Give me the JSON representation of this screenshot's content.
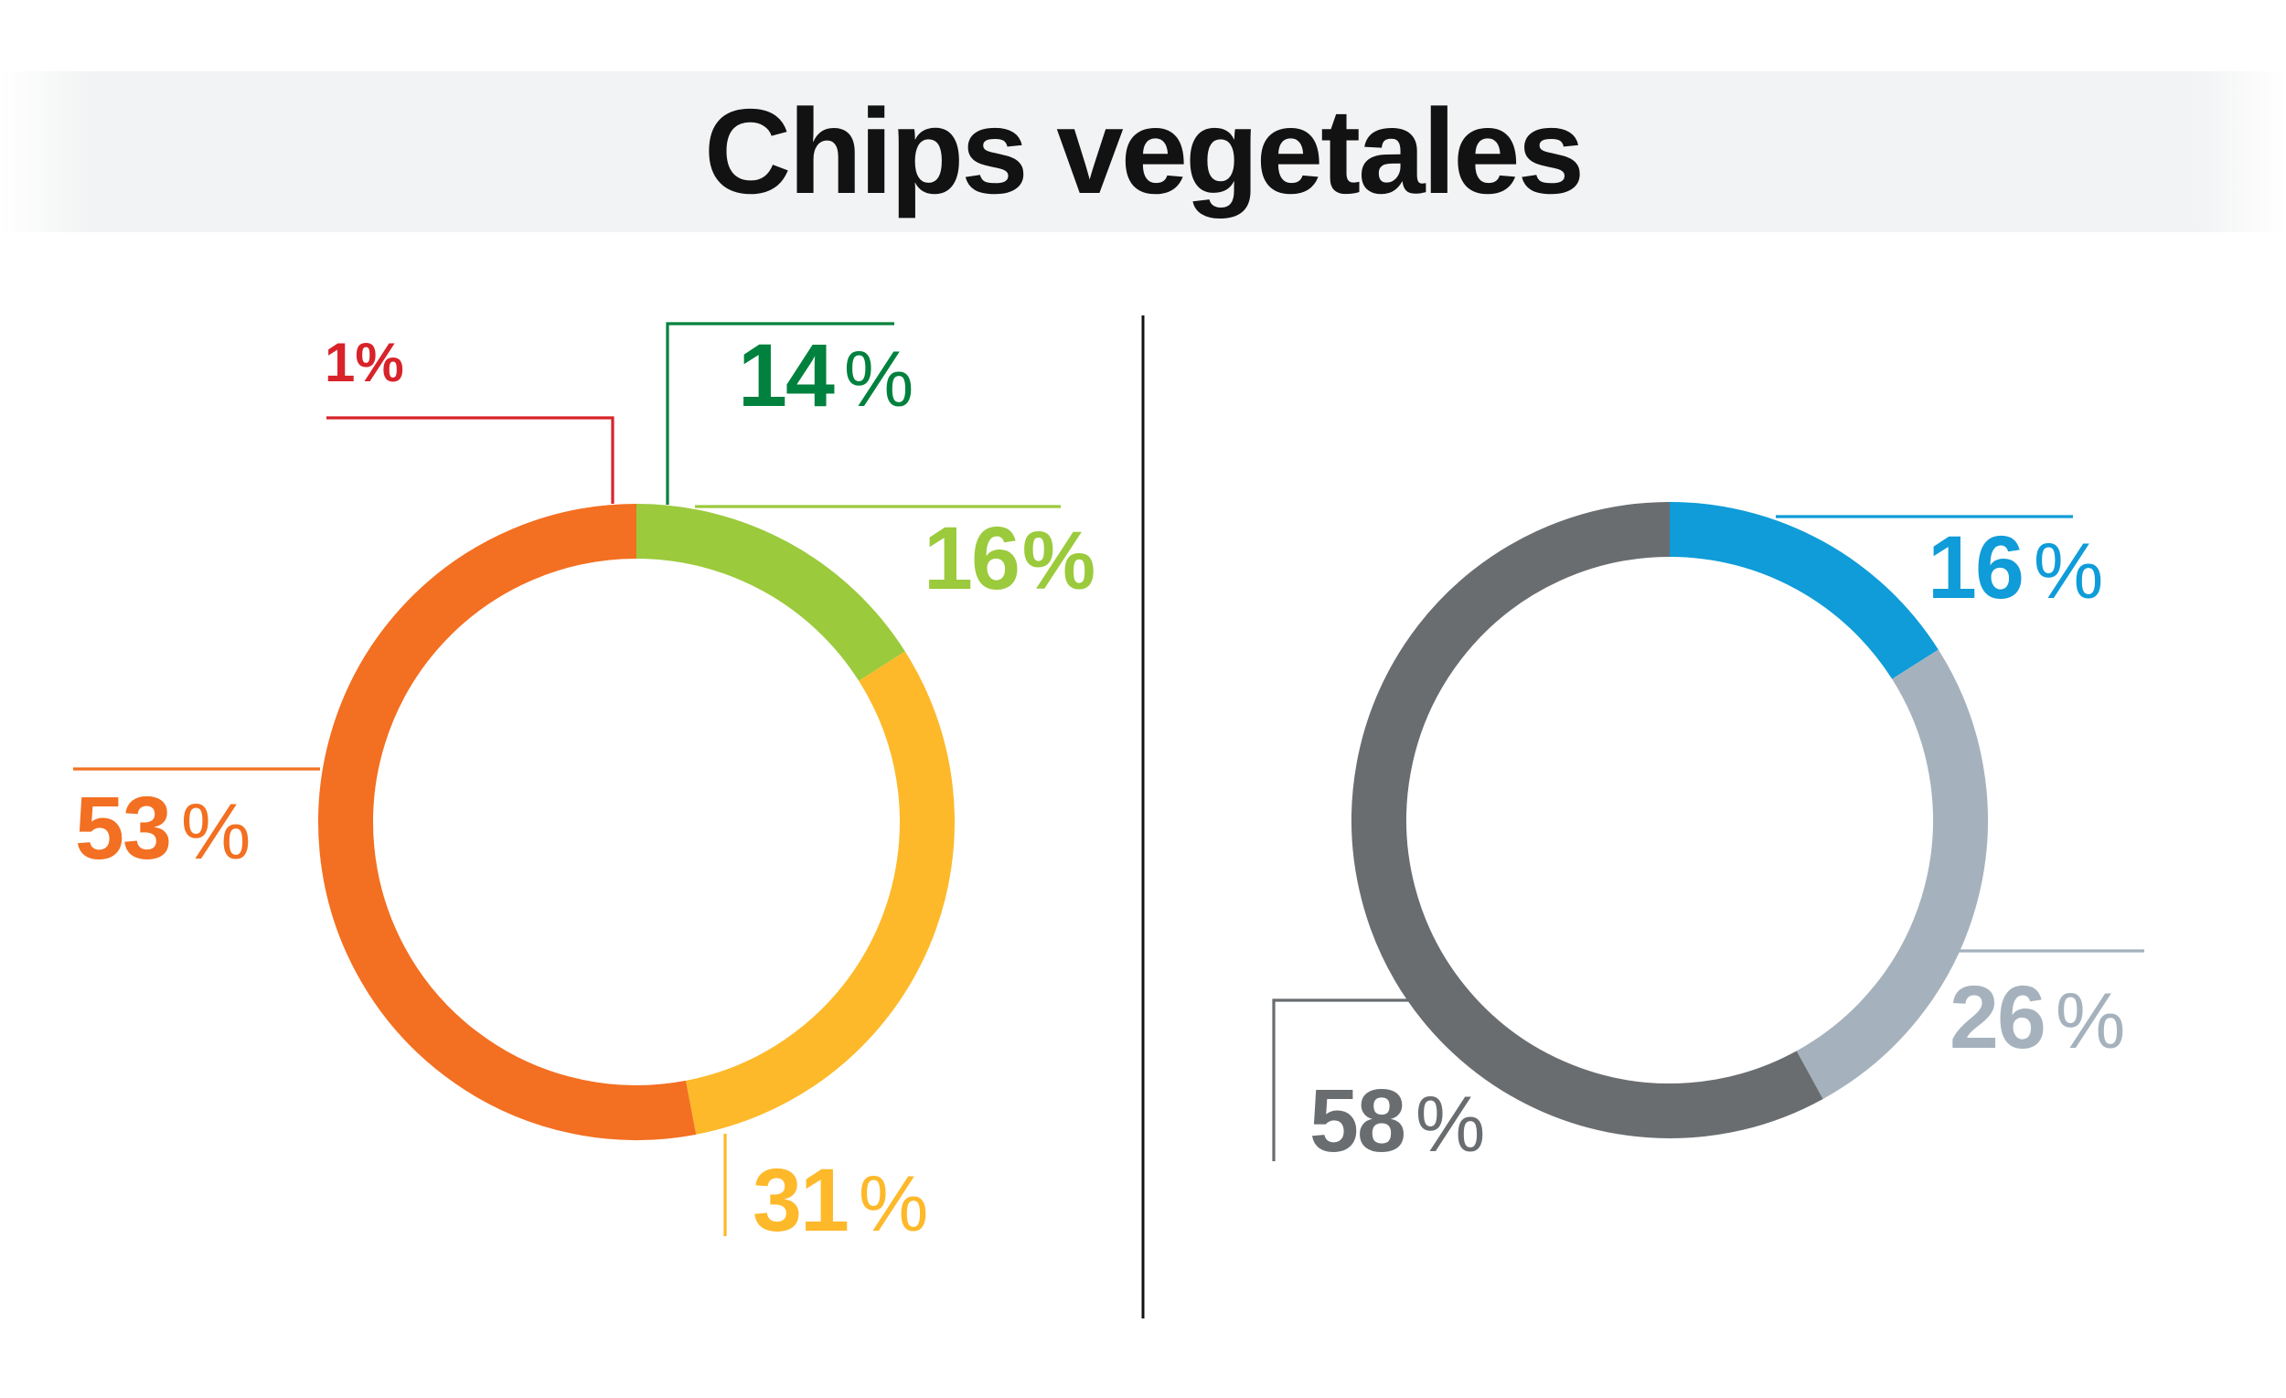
{
  "title": "Chips vegetales",
  "percent_sign": "%",
  "colors": {
    "ink": "#121212",
    "banner": "#F2F3F4",
    "red": "#D8232A",
    "dark_green": "#00813D",
    "light_green": "#9BCA3C",
    "yellow": "#FDB92A",
    "orange": "#F36F21",
    "blue": "#0F9CD8",
    "gray_light": "#A5B2BD",
    "gray_dark": "#6A6D70"
  },
  "labels": {
    "left_red": "1",
    "left_dark_green": "14",
    "left_light_green": "16",
    "left_orange": "53",
    "left_yellow": "31",
    "right_blue": "16",
    "right_gray_light": "26",
    "right_gray_dark": "58"
  },
  "chart_data": [
    {
      "type": "pie",
      "subtype": "donut",
      "position": "left",
      "title": "Chips vegetales",
      "start_angle_deg": 0,
      "direction": "clockwise",
      "slices": [
        {
          "label": "16%",
          "value": 16,
          "color": "#9BCA3C"
        },
        {
          "label": "31%",
          "value": 31,
          "color": "#FDB92A"
        },
        {
          "label": "53%",
          "value": 53,
          "color": "#F36F21"
        }
      ],
      "annotations": [
        {
          "label": "14%",
          "color": "#00813D",
          "points_to": "top of ring, right of 12 o'clock"
        },
        {
          "label": "1%",
          "color": "#D8232A",
          "points_to": "top of ring, left of 12 o'clock"
        }
      ]
    },
    {
      "type": "pie",
      "subtype": "donut",
      "position": "right",
      "title": "Chips vegetales",
      "start_angle_deg": 0,
      "direction": "clockwise",
      "slices": [
        {
          "label": "16%",
          "value": 16,
          "color": "#0F9CD8"
        },
        {
          "label": "26%",
          "value": 26,
          "color": "#A5B2BD"
        },
        {
          "label": "58%",
          "value": 58,
          "color": "#6A6D70"
        }
      ]
    }
  ]
}
